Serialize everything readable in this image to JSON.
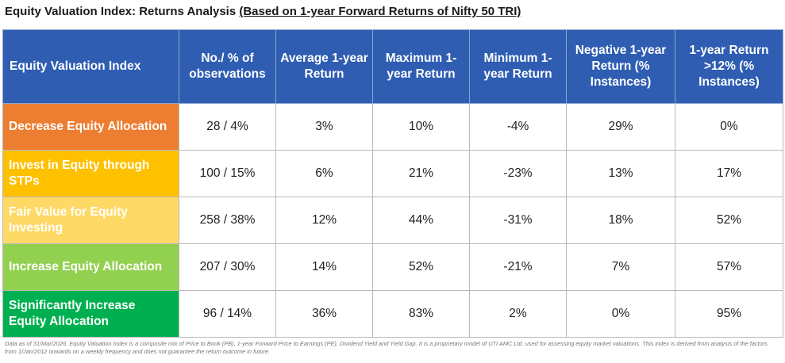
{
  "title": {
    "main": "Equity Valuation Index: Returns Analysis ",
    "sub": "(Based on 1-year Forward Returns of Nifty 50 TRI)"
  },
  "table": {
    "headers": [
      "Equity Valuation Index",
      "No./ % of observations",
      "Average 1-year Return",
      "Maximum 1-year Return",
      "Minimum 1-year Return",
      "Negative 1-year Return (% Instances)",
      "1-year Return >12% (% Instances)"
    ],
    "rows": [
      {
        "label": "Decrease Equity Allocation",
        "color": "#ed7d31",
        "cells": [
          "28 / 4%",
          "3%",
          "10%",
          "-4%",
          "29%",
          "0%"
        ]
      },
      {
        "label": "Invest in Equity through STPs",
        "color": "#ffc000",
        "cells": [
          "100 / 15%",
          "6%",
          "21%",
          "-23%",
          "13%",
          "17%"
        ]
      },
      {
        "label": "Fair Value for Equity Investing",
        "color": "#ffd966",
        "cells": [
          "258 / 38%",
          "12%",
          "44%",
          "-31%",
          "18%",
          "52%"
        ]
      },
      {
        "label": "Increase Equity Allocation",
        "color": "#92d050",
        "cells": [
          "207 / 30%",
          "14%",
          "52%",
          "-21%",
          "7%",
          "57%"
        ]
      },
      {
        "label": "Significantly Increase Equity Allocation",
        "color": "#00b050",
        "cells": [
          "96 / 14%",
          "36%",
          "83%",
          "2%",
          "0%",
          "95%"
        ]
      }
    ]
  },
  "colors": {
    "header_bg": "#2f5db2"
  },
  "footnote": "Data as of 31/Mar/2026. Equity Valuation Index is a composite mix of Price to Book (PB), 1-year Forward Price to Earnings (PE), Dividend Yield and Yield Gap. It is a proprietary model of UTI AMC Ltd. used for assessing equity market valuations. This index is derived from analysis of the factors from 1/Jan/2012 onwards on a weekly frequency and does not guarantee the return outcome in future."
}
